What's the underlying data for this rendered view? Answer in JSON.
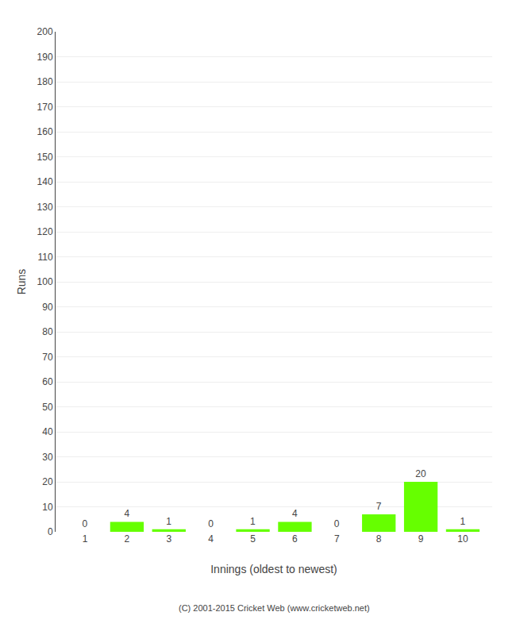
{
  "chart_data": {
    "type": "bar",
    "xlabel": "Innings (oldest to newest)",
    "ylabel": "Runs",
    "categories": [
      1,
      2,
      3,
      4,
      5,
      6,
      7,
      8,
      9,
      10
    ],
    "values": [
      0,
      4,
      1,
      0,
      1,
      4,
      0,
      7,
      20,
      1
    ],
    "color": "#66ff00",
    "ylim": [
      0,
      200
    ],
    "yticks": [
      0,
      10,
      20,
      30,
      40,
      50,
      60,
      70,
      80,
      90,
      100,
      110,
      120,
      130,
      140,
      150,
      160,
      170,
      180,
      190,
      200
    ],
    "grid": true,
    "data_labels": true,
    "annotations": [
      "(C) 2001-2015 Cricket Web (www.cricketweb.net)"
    ]
  }
}
